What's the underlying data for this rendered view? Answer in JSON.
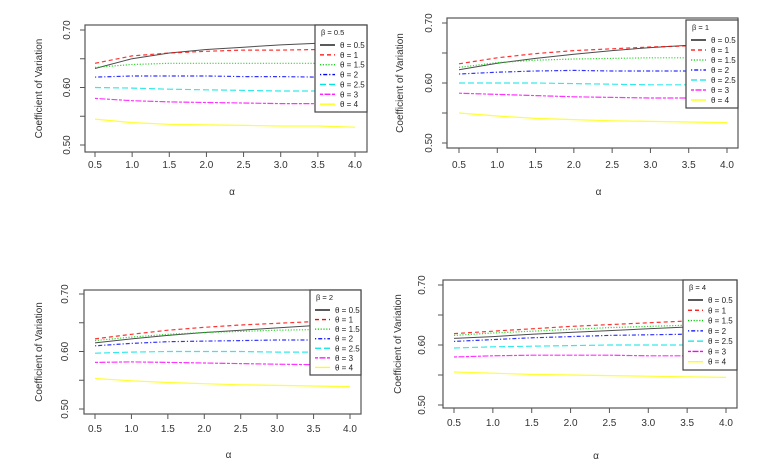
{
  "figure": {
    "description": "Coefficient of Variation versus alpha for several theta values, four panels by beta"
  },
  "chart_data": [
    {
      "type": "line",
      "panel": "top-left",
      "legend_title": "β = 0.5",
      "xlabel": "α",
      "ylabel": "Coefficient of Variation",
      "xlim": [
        0.5,
        4.0
      ],
      "ylim": [
        0.5,
        0.7
      ],
      "xticks": [
        "0.5",
        "1.0",
        "1.5",
        "2.0",
        "2.5",
        "3.0",
        "3.5",
        "4.0"
      ],
      "yticks": [
        "0.50",
        "0.60",
        "0.70"
      ],
      "legend_position": "top-right",
      "x": [
        0.5,
        1.0,
        1.5,
        2.0,
        2.5,
        3.0,
        3.5,
        4.0
      ],
      "series": [
        {
          "name": "θ = 0.5",
          "color": "#000000",
          "dash": "solid",
          "values": [
            0.633,
            0.65,
            0.66,
            0.666,
            0.67,
            0.674,
            0.677,
            0.68
          ]
        },
        {
          "name": "θ = 1",
          "color": "#ff0000",
          "dash": "dashed",
          "values": [
            0.642,
            0.655,
            0.66,
            0.663,
            0.665,
            0.665,
            0.666,
            0.667
          ]
        },
        {
          "name": "θ = 1.5",
          "color": "#00cc00",
          "dash": "dotted",
          "values": [
            0.635,
            0.64,
            0.642,
            0.642,
            0.642,
            0.642,
            0.642,
            0.642
          ]
        },
        {
          "name": "θ = 2",
          "color": "#0000ff",
          "dash": "dotdash",
          "values": [
            0.618,
            0.62,
            0.62,
            0.62,
            0.619,
            0.619,
            0.618,
            0.617
          ]
        },
        {
          "name": "θ = 2.5",
          "color": "#00e5e5",
          "dash": "longdash",
          "values": [
            0.6,
            0.599,
            0.597,
            0.596,
            0.595,
            0.594,
            0.594,
            0.593
          ]
        },
        {
          "name": "θ = 3",
          "color": "#ff00ff",
          "dash": "twodash",
          "values": [
            0.581,
            0.577,
            0.575,
            0.574,
            0.573,
            0.572,
            0.572,
            0.571
          ]
        },
        {
          "name": "θ = 4",
          "color": "#ffff00",
          "dash": "solid",
          "values": [
            0.545,
            0.539,
            0.536,
            0.535,
            0.534,
            0.533,
            0.533,
            0.531
          ]
        }
      ]
    },
    {
      "type": "line",
      "panel": "top-right",
      "legend_title": "β = 1",
      "xlabel": "α",
      "ylabel": "Coefficient of Variation",
      "xlim": [
        0.5,
        4.0
      ],
      "ylim": [
        0.5,
        0.7
      ],
      "xticks": [
        "0.5",
        "1.0",
        "1.5",
        "2.0",
        "2.5",
        "3.0",
        "3.5",
        "4.0"
      ],
      "yticks": [
        "0.50",
        "0.60",
        "0.70"
      ],
      "legend_position": "top-right",
      "x": [
        0.5,
        1.0,
        1.5,
        2.0,
        2.5,
        3.0,
        3.5,
        4.0
      ],
      "series": [
        {
          "name": "θ = 0.5",
          "color": "#000000",
          "dash": "solid",
          "values": [
            0.622,
            0.633,
            0.641,
            0.648,
            0.654,
            0.659,
            0.663,
            0.667
          ]
        },
        {
          "name": "θ = 1",
          "color": "#ff0000",
          "dash": "dashed",
          "values": [
            0.632,
            0.642,
            0.649,
            0.654,
            0.657,
            0.66,
            0.662,
            0.664
          ]
        },
        {
          "name": "θ = 1.5",
          "color": "#00cc00",
          "dash": "dotted",
          "values": [
            0.626,
            0.634,
            0.638,
            0.64,
            0.641,
            0.642,
            0.642,
            0.643
          ]
        },
        {
          "name": "θ = 2",
          "color": "#0000ff",
          "dash": "dotdash",
          "values": [
            0.615,
            0.618,
            0.62,
            0.621,
            0.62,
            0.62,
            0.62,
            0.619
          ]
        },
        {
          "name": "θ = 2.5",
          "color": "#00e5e5",
          "dash": "longdash",
          "values": [
            0.6,
            0.6,
            0.6,
            0.599,
            0.598,
            0.597,
            0.597,
            0.596
          ]
        },
        {
          "name": "θ = 3",
          "color": "#ff00ff",
          "dash": "twodash",
          "values": [
            0.583,
            0.581,
            0.579,
            0.577,
            0.576,
            0.575,
            0.575,
            0.574
          ]
        },
        {
          "name": "θ = 4",
          "color": "#ffff00",
          "dash": "solid",
          "values": [
            0.55,
            0.545,
            0.541,
            0.539,
            0.537,
            0.536,
            0.535,
            0.534
          ]
        }
      ]
    },
    {
      "type": "line",
      "panel": "bottom-left",
      "legend_title": "β = 2",
      "xlabel": "α",
      "ylabel": "Coefficient of Variation",
      "xlim": [
        0.5,
        4.0
      ],
      "ylim": [
        0.5,
        0.7
      ],
      "xticks": [
        "0.5",
        "1.0",
        "1.5",
        "2.0",
        "2.5",
        "3.0",
        "3.5",
        "4.0"
      ],
      "yticks": [
        "0.50",
        "0.60",
        "0.70"
      ],
      "legend_position": "top-right",
      "x": [
        0.5,
        1.0,
        1.5,
        2.0,
        2.5,
        3.0,
        3.5,
        4.0
      ],
      "series": [
        {
          "name": "θ = 0.5",
          "color": "#000000",
          "dash": "solid",
          "values": [
            0.615,
            0.622,
            0.628,
            0.633,
            0.637,
            0.641,
            0.645,
            0.649
          ]
        },
        {
          "name": "θ = 1",
          "color": "#ff0000",
          "dash": "dashed",
          "values": [
            0.622,
            0.63,
            0.637,
            0.642,
            0.646,
            0.649,
            0.652,
            0.654
          ]
        },
        {
          "name": "θ = 1.5",
          "color": "#00cc00",
          "dash": "dotted",
          "values": [
            0.619,
            0.625,
            0.63,
            0.633,
            0.635,
            0.637,
            0.638,
            0.639
          ]
        },
        {
          "name": "θ = 2",
          "color": "#0000ff",
          "dash": "dotdash",
          "values": [
            0.61,
            0.614,
            0.617,
            0.618,
            0.619,
            0.62,
            0.62,
            0.62
          ]
        },
        {
          "name": "θ = 2.5",
          "color": "#00e5e5",
          "dash": "longdash",
          "values": [
            0.597,
            0.599,
            0.6,
            0.6,
            0.6,
            0.599,
            0.599,
            0.598
          ]
        },
        {
          "name": "θ = 3",
          "color": "#ff00ff",
          "dash": "twodash",
          "values": [
            0.581,
            0.582,
            0.581,
            0.58,
            0.579,
            0.578,
            0.577,
            0.576
          ]
        },
        {
          "name": "θ = 4",
          "color": "#ffff00",
          "dash": "solid",
          "values": [
            0.553,
            0.549,
            0.546,
            0.544,
            0.542,
            0.541,
            0.54,
            0.539
          ]
        }
      ]
    },
    {
      "type": "line",
      "panel": "bottom-right",
      "legend_title": "β = 4",
      "xlabel": "α",
      "ylabel": "Coefficient of Variation",
      "xlim": [
        0.5,
        4.0
      ],
      "ylim": [
        0.5,
        0.7
      ],
      "xticks": [
        "0.5",
        "1.0",
        "1.5",
        "2.0",
        "2.5",
        "3.0",
        "3.5",
        "4.0"
      ],
      "yticks": [
        "0.50",
        "0.60",
        "0.70"
      ],
      "legend_position": "top-right",
      "x": [
        0.5,
        1.0,
        1.5,
        2.0,
        2.5,
        3.0,
        3.5,
        4.0
      ],
      "series": [
        {
          "name": "θ = 0.5",
          "color": "#000000",
          "dash": "solid",
          "values": [
            0.611,
            0.614,
            0.618,
            0.621,
            0.624,
            0.627,
            0.63,
            0.632
          ]
        },
        {
          "name": "θ = 1",
          "color": "#ff0000",
          "dash": "dashed",
          "values": [
            0.619,
            0.623,
            0.627,
            0.631,
            0.634,
            0.637,
            0.64,
            0.642
          ]
        },
        {
          "name": "θ = 1.5",
          "color": "#00cc00",
          "dash": "dotted",
          "values": [
            0.616,
            0.62,
            0.623,
            0.626,
            0.629,
            0.631,
            0.633,
            0.635
          ]
        },
        {
          "name": "θ = 2",
          "color": "#0000ff",
          "dash": "dotdash",
          "values": [
            0.606,
            0.609,
            0.612,
            0.614,
            0.616,
            0.617,
            0.618,
            0.619
          ]
        },
        {
          "name": "θ = 2.5",
          "color": "#00e5e5",
          "dash": "longdash",
          "values": [
            0.595,
            0.597,
            0.598,
            0.599,
            0.6,
            0.6,
            0.6,
            0.6
          ]
        },
        {
          "name": "θ = 3",
          "color": "#ff00ff",
          "dash": "twodash",
          "values": [
            0.58,
            0.582,
            0.583,
            0.583,
            0.583,
            0.582,
            0.582,
            0.581
          ]
        },
        {
          "name": "θ = 4",
          "color": "#ffff00",
          "dash": "solid",
          "values": [
            0.555,
            0.553,
            0.551,
            0.55,
            0.549,
            0.548,
            0.547,
            0.546
          ]
        }
      ]
    }
  ]
}
